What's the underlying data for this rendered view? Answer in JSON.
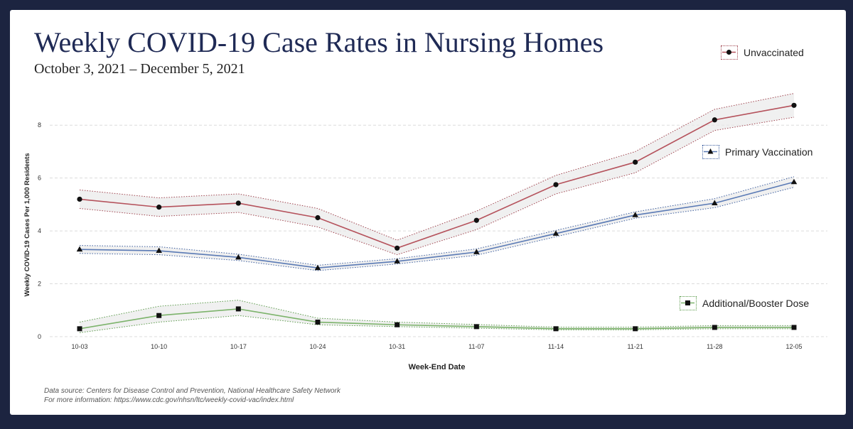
{
  "page": {
    "title": "Weekly COVID-19 Case Rates in Nursing Homes",
    "subtitle": "October 3, 2021 – December 5, 2021",
    "source_line1": "Data source: Centers for Disease Control and Prevention, National Healthcare Safety Network",
    "source_line2": "For more information: https://www.cdc.gov/nhsn/ltc/weekly-covid-vac/index.html"
  },
  "chart_data": {
    "type": "line",
    "title": "Weekly COVID-19 Case Rates in Nursing Homes",
    "subtitle": "October 3, 2021 – December 5, 2021",
    "xlabel": "Week-End Date",
    "ylabel": "Weekly COVID-19 Cases Per 1,000 Residents",
    "ylim": [
      0,
      9
    ],
    "yticks": [
      0,
      2,
      4,
      6,
      8
    ],
    "grid": true,
    "legend_position": "right",
    "categories": [
      "10-03",
      "10-10",
      "10-17",
      "10-24",
      "10-31",
      "11-07",
      "11-14",
      "11-21",
      "11-28",
      "12-05"
    ],
    "series": [
      {
        "name": "Unvaccinated",
        "marker": "circle",
        "color": "#b5525c",
        "band_color": "#a04550",
        "values": [
          5.2,
          4.9,
          5.05,
          4.5,
          3.35,
          4.4,
          5.75,
          6.6,
          8.2,
          8.75
        ],
        "lower": [
          4.85,
          4.55,
          4.7,
          4.15,
          3.1,
          4.05,
          5.4,
          6.2,
          7.8,
          8.3
        ],
        "upper": [
          5.55,
          5.25,
          5.4,
          4.85,
          3.65,
          4.75,
          6.1,
          7.0,
          8.6,
          9.2
        ]
      },
      {
        "name": "Primary Vaccination",
        "marker": "triangle",
        "color": "#5a7ab5",
        "band_color": "#3d5fa0",
        "values": [
          3.3,
          3.25,
          3.0,
          2.6,
          2.85,
          3.2,
          3.9,
          4.6,
          5.05,
          5.85
        ],
        "lower": [
          3.15,
          3.1,
          2.88,
          2.5,
          2.75,
          3.08,
          3.78,
          4.48,
          4.88,
          5.65
        ],
        "upper": [
          3.45,
          3.4,
          3.12,
          2.7,
          2.95,
          3.32,
          4.02,
          4.72,
          5.22,
          6.05
        ]
      },
      {
        "name": "Additional/Booster Dose",
        "marker": "square",
        "color": "#7cb36b",
        "band_color": "#5a9a4a",
        "values": [
          0.3,
          0.8,
          1.05,
          0.55,
          0.45,
          0.38,
          0.3,
          0.3,
          0.35,
          0.35
        ],
        "lower": [
          0.15,
          0.55,
          0.8,
          0.45,
          0.38,
          0.32,
          0.26,
          0.26,
          0.3,
          0.3
        ],
        "upper": [
          0.55,
          1.15,
          1.38,
          0.7,
          0.55,
          0.46,
          0.36,
          0.36,
          0.42,
          0.42
        ]
      }
    ]
  }
}
